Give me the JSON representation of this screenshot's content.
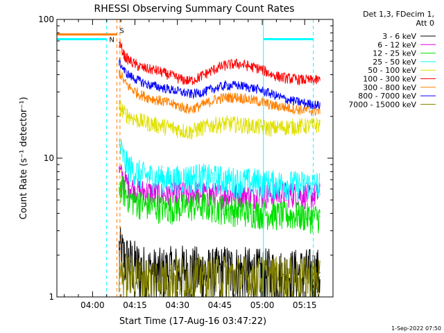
{
  "chart_data": {
    "type": "line",
    "title": "RHESSI Observing Summary Count Rates",
    "xlabel": "Start Time (17-Aug-16 03:47:22)",
    "ylabel": "Count Rate (s⁻¹ detector⁻¹)",
    "yscale": "log",
    "ylim": [
      1,
      100
    ],
    "xlim_minutes": [
      0,
      97.6
    ],
    "x_ticks": [
      {
        "minute": 12.6,
        "label": "04:00"
      },
      {
        "minute": 27.6,
        "label": "04:15"
      },
      {
        "minute": 42.6,
        "label": "04:30"
      },
      {
        "minute": 57.6,
        "label": "04:45"
      },
      {
        "minute": 72.6,
        "label": "05:00"
      },
      {
        "minute": 87.6,
        "label": "05:15"
      }
    ],
    "y_ticks": [
      {
        "value": 1,
        "label": "1"
      },
      {
        "value": 10,
        "label": "10"
      },
      {
        "value": 100,
        "label": "100"
      }
    ],
    "legend": {
      "placement": "top-right",
      "header": [
        "Det 1,3, FDecim 1,",
        "Att 0"
      ]
    },
    "series": [
      {
        "name": "3 - 6 keV",
        "color": "#000000",
        "x": [
          22,
          24,
          26,
          28,
          30,
          35,
          40,
          45,
          50,
          55,
          60,
          65,
          70,
          75,
          80,
          85,
          90,
          93
        ],
        "y": [
          2.2,
          1.9,
          1.8,
          1.7,
          1.6,
          1.5,
          1.55,
          1.6,
          1.55,
          1.5,
          1.6,
          1.55,
          1.5,
          1.5,
          1.45,
          1.5,
          1.5,
          1.5
        ]
      },
      {
        "name": "6 - 12 keV",
        "color": "#e000e0",
        "x": [
          22,
          24,
          26,
          28,
          30,
          35,
          40,
          45,
          50,
          55,
          60,
          65,
          70,
          75,
          80,
          85,
          90,
          93
        ],
        "y": [
          8.0,
          6.8,
          6.3,
          6.0,
          5.8,
          5.6,
          5.5,
          5.6,
          5.7,
          5.5,
          5.4,
          5.5,
          5.4,
          5.5,
          5.6,
          5.5,
          5.4,
          5.5
        ]
      },
      {
        "name": "12 - 25 keV",
        "color": "#00e000",
        "x": [
          22,
          24,
          26,
          28,
          30,
          35,
          40,
          45,
          50,
          55,
          60,
          65,
          70,
          75,
          80,
          85,
          90,
          93
        ],
        "y": [
          6.5,
          5.6,
          5.1,
          4.9,
          4.7,
          4.5,
          4.4,
          4.5,
          4.6,
          4.5,
          4.3,
          4.2,
          4.1,
          4.0,
          3.9,
          3.9,
          3.8,
          3.8
        ]
      },
      {
        "name": "25 - 50 keV",
        "color": "#00ffff",
        "x": [
          22,
          24,
          26,
          28,
          30,
          35,
          40,
          45,
          50,
          55,
          60,
          65,
          70,
          75,
          80,
          85,
          90,
          93
        ],
        "y": [
          12.5,
          9.5,
          8.5,
          8.0,
          7.6,
          7.3,
          7.0,
          7.2,
          7.4,
          7.2,
          7.0,
          6.8,
          6.8,
          6.6,
          6.6,
          6.5,
          6.5,
          6.5
        ]
      },
      {
        "name": "50 - 100 keV",
        "color": "#e0e000",
        "x": [
          22,
          24,
          26,
          28,
          30,
          32,
          35,
          38,
          41,
          44,
          47,
          50,
          53,
          56,
          60,
          64,
          68,
          72,
          76,
          80,
          85,
          90,
          93
        ],
        "y": [
          24,
          21,
          20,
          19,
          18.5,
          18,
          17.5,
          17,
          16.5,
          16,
          15.5,
          16.3,
          17,
          17.5,
          17.8,
          17.6,
          17.2,
          16.8,
          16.5,
          16.8,
          17,
          17.2,
          17.5
        ]
      },
      {
        "name": "100 - 300 keV",
        "color": "#ff0000",
        "x": [
          22,
          24,
          26,
          28,
          30,
          32,
          35,
          38,
          41,
          44,
          47,
          50,
          53,
          56,
          60,
          64,
          68,
          72,
          76,
          80,
          85,
          90,
          93
        ],
        "y": [
          68,
          54,
          50,
          47,
          45,
          44,
          43,
          41,
          39,
          37,
          36,
          38,
          41,
          44,
          47,
          48,
          46,
          44,
          40,
          38,
          37,
          36.5,
          36.5
        ]
      },
      {
        "name": "300 - 800 keV",
        "color": "#ff8000",
        "x": [
          22,
          24,
          26,
          28,
          30,
          32,
          35,
          38,
          41,
          44,
          47,
          50,
          53,
          56,
          60,
          64,
          68,
          72,
          76,
          80,
          85,
          90,
          93
        ],
        "y": [
          42,
          35,
          32,
          30,
          28.5,
          27.5,
          26.5,
          25.5,
          24.5,
          23.5,
          22.5,
          23.5,
          25,
          26.5,
          27.5,
          27.5,
          26.5,
          25.5,
          24,
          23.5,
          22.5,
          22,
          22
        ]
      },
      {
        "name": "800 - 7000 keV",
        "color": "#0000ff",
        "x": [
          22,
          24,
          26,
          28,
          30,
          32,
          35,
          38,
          41,
          44,
          47,
          50,
          53,
          56,
          60,
          64,
          68,
          72,
          76,
          80,
          85,
          90,
          93
        ],
        "y": [
          50,
          42,
          39,
          37,
          35.5,
          34,
          33,
          32,
          31,
          30,
          29,
          29.5,
          30.5,
          32,
          33.5,
          33.5,
          32.5,
          31,
          29,
          27,
          25.5,
          24.5,
          24
        ]
      },
      {
        "name": "7000 - 15000 keV",
        "color": "#808000",
        "x": [
          22,
          24,
          26,
          28,
          30,
          35,
          40,
          45,
          50,
          55,
          60,
          65,
          70,
          75,
          80,
          85,
          90,
          93
        ],
        "y": [
          1.6,
          1.5,
          1.45,
          1.45,
          1.4,
          1.4,
          1.4,
          1.45,
          1.4,
          1.4,
          1.45,
          1.4,
          1.4,
          1.4,
          1.4,
          1.4,
          1.4,
          1.4
        ]
      }
    ],
    "flag_markers": [
      {
        "label": "N",
        "color": "#00ffff"
      },
      {
        "label": "S",
        "color": "#ff8000"
      }
    ],
    "timestamp": "1-Sep-2022 07:50"
  }
}
